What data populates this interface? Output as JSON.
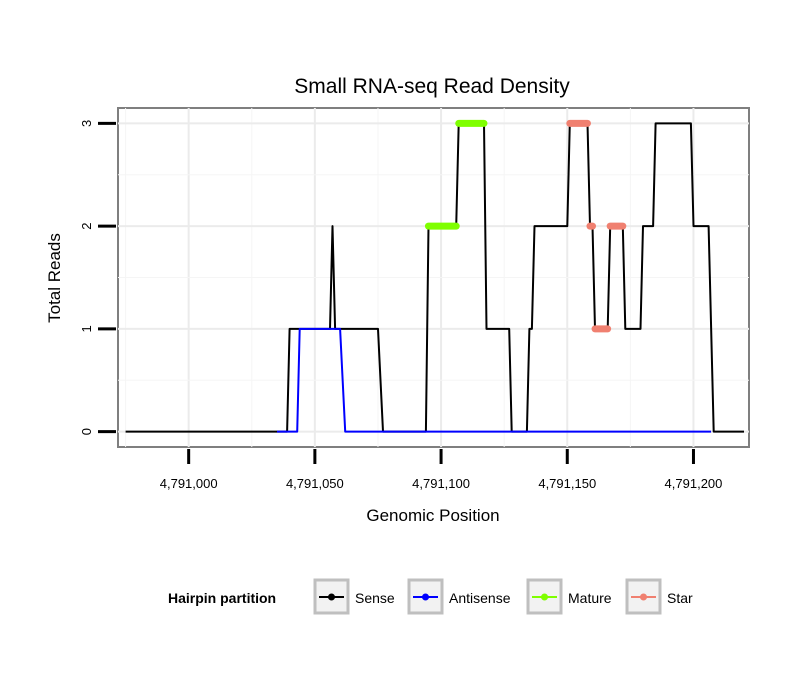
{
  "chart_data": {
    "type": "line",
    "title": "Small RNA-seq Read Density",
    "xlabel": "Genomic Position",
    "ylabel": "Total Reads",
    "xlim": [
      4790972,
      4791222
    ],
    "ylim": [
      -0.15,
      3.15
    ],
    "x_ticks": [
      4791000,
      4791050,
      4791100,
      4791150,
      4791200
    ],
    "x_tick_labels": [
      "4,791,000",
      "4,791,050",
      "4,791,100",
      "4,791,150",
      "4,791,200"
    ],
    "y_ticks": [
      0,
      1,
      2,
      3
    ],
    "y_tick_labels": [
      "0",
      "1",
      "2",
      "3"
    ],
    "grid": true,
    "legend": {
      "title": "Hairpin partition",
      "position": "bottom",
      "entries": [
        {
          "name": "Sense",
          "color": "#000000"
        },
        {
          "name": "Antisense",
          "color": "#0000ff"
        },
        {
          "name": "Mature",
          "color": "#7fff00"
        },
        {
          "name": "Star",
          "color": "#f08070"
        }
      ]
    },
    "series": [
      {
        "name": "Sense",
        "color": "#000000",
        "points": [
          [
            4790975,
            0
          ],
          [
            4791039,
            0
          ],
          [
            4791040,
            1
          ],
          [
            4791056,
            1
          ],
          [
            4791057,
            2
          ],
          [
            4791058,
            1
          ],
          [
            4791075,
            1
          ],
          [
            4791077,
            0
          ],
          [
            4791094,
            0
          ],
          [
            4791095,
            2
          ],
          [
            4791106,
            2
          ],
          [
            4791107,
            3
          ],
          [
            4791117,
            3
          ],
          [
            4791118,
            1
          ],
          [
            4791127,
            1
          ],
          [
            4791128,
            0
          ],
          [
            4791134,
            0
          ],
          [
            4791135,
            1
          ],
          [
            4791136,
            1
          ],
          [
            4791137,
            2
          ],
          [
            4791150,
            2
          ],
          [
            4791151,
            3
          ],
          [
            4791158,
            3
          ],
          [
            4791159,
            2
          ],
          [
            4791160,
            2
          ],
          [
            4791161,
            1
          ],
          [
            4791166,
            1
          ],
          [
            4791167,
            2
          ],
          [
            4791172,
            2
          ],
          [
            4791173,
            1
          ],
          [
            4791179,
            1
          ],
          [
            4791180,
            2
          ],
          [
            4791184,
            2
          ],
          [
            4791185,
            3
          ],
          [
            4791199,
            3
          ],
          [
            4791200,
            2
          ],
          [
            4791206,
            2
          ],
          [
            4791208,
            0
          ],
          [
            4791220,
            0
          ]
        ]
      },
      {
        "name": "Antisense",
        "color": "#0000ff",
        "points": [
          [
            4791035,
            0
          ],
          [
            4791043,
            0
          ],
          [
            4791044,
            1
          ],
          [
            4791060,
            1
          ],
          [
            4791062,
            0
          ],
          [
            4791207,
            0
          ]
        ]
      },
      {
        "name": "Mature",
        "color": "#7fff00",
        "segments": [
          {
            "from": 4791095,
            "to": 4791106,
            "value": 2
          },
          {
            "from": 4791107,
            "to": 4791117,
            "value": 3
          }
        ]
      },
      {
        "name": "Star",
        "color": "#f08070",
        "segments": [
          {
            "from": 4791151,
            "to": 4791158,
            "value": 3
          },
          {
            "from": 4791159,
            "to": 4791160,
            "value": 2
          },
          {
            "from": 4791161,
            "to": 4791166,
            "value": 1
          },
          {
            "from": 4791167,
            "to": 4791172,
            "value": 2
          }
        ]
      }
    ]
  }
}
